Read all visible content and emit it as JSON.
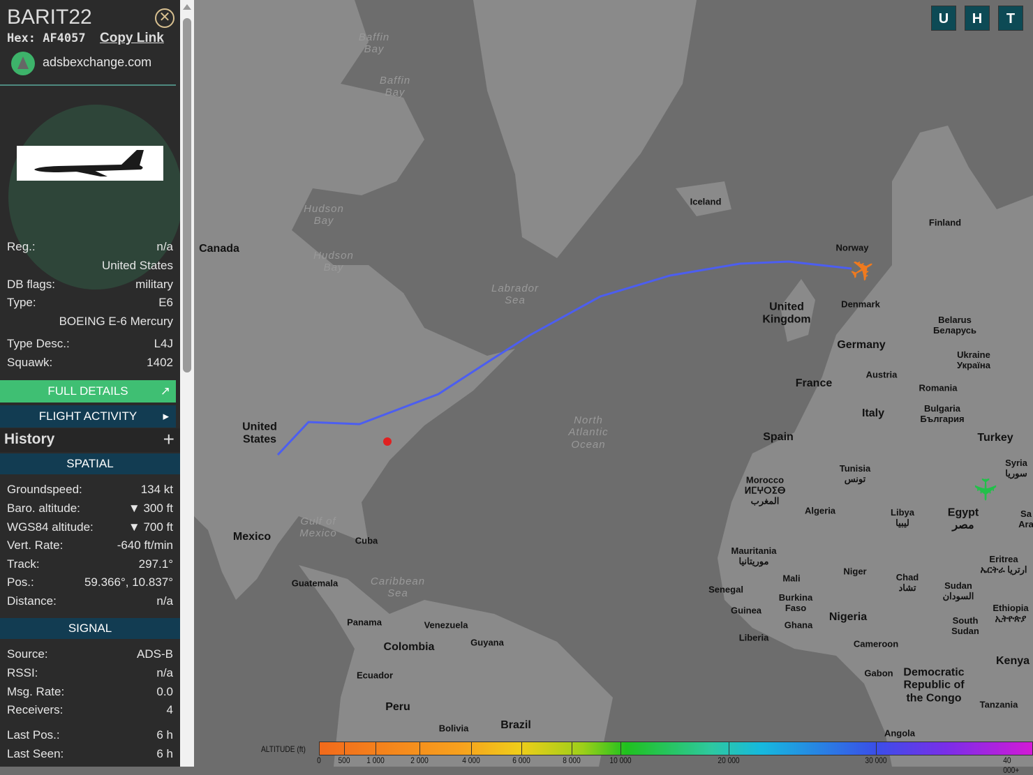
{
  "panel": {
    "callsign": "BARIT22",
    "hex_label": "Hex:",
    "hex": "AF4057",
    "copy_link": "Copy Link",
    "site": "adsbexchange.com",
    "info": [
      {
        "label": "Reg.:",
        "value": "n/a"
      },
      {
        "label": "",
        "value": "United States"
      },
      {
        "label": "DB flags:",
        "value": "military"
      },
      {
        "label": "Type:",
        "value": "E6"
      },
      {
        "label": "",
        "value": "BOEING E-6 Mercury"
      },
      {
        "label": "Type Desc.:",
        "value": "L4J"
      },
      {
        "label": "Squawk:",
        "value": "1402"
      }
    ],
    "full_details": "FULL DETAILS",
    "flight_activity": "FLIGHT ACTIVITY",
    "history": "History",
    "history_icon": "plus-icon",
    "spatial_title": "SPATIAL",
    "spatial": [
      {
        "label": "Groundspeed:",
        "value": "134 kt"
      },
      {
        "label": "Baro. altitude:",
        "value": "▼ 300 ft"
      },
      {
        "label": "WGS84 altitude:",
        "value": "▼ 700 ft"
      },
      {
        "label": "Vert. Rate:",
        "value": "-640 ft/min"
      },
      {
        "label": "Track:",
        "value": "297.1°"
      },
      {
        "label": "Pos.:",
        "value": "59.366°, 10.837°"
      },
      {
        "label": "Distance:",
        "value": "n/a"
      }
    ],
    "signal_title": "SIGNAL",
    "signal": [
      {
        "label": "Source:",
        "value": "ADS-B"
      },
      {
        "label": "RSSI:",
        "value": "n/a"
      },
      {
        "label": "Msg. Rate:",
        "value": "0.0"
      },
      {
        "label": "Receivers:",
        "value": "4"
      },
      {
        "label": "Last Pos.:",
        "value": "6 h"
      },
      {
        "label": "Last Seen:",
        "value": "6 h"
      }
    ]
  },
  "map": {
    "buttons": [
      "U",
      "H",
      "T"
    ],
    "labels": [
      "Baffin\nBay",
      "Baffin\nBay",
      "Hudson\nBay",
      "Hudson\nBay",
      "Labrador\nSea",
      "North\nAtlantic\nOcean",
      "Gulf of\nMexico",
      "Caribbean\nSea",
      "Canada",
      "United\nStates",
      "Mexico",
      "Cuba",
      "Guatemala",
      "Panama",
      "Venezuela",
      "Guyana",
      "Colombia",
      "Ecuador",
      "Peru",
      "Brazil",
      "Bolivia",
      "Iceland",
      "Norway",
      "Finland",
      "Denmark",
      "United\nKingdom",
      "Germany",
      "France",
      "Austria",
      "Italy",
      "Spain",
      "Belarus\nБеларусь",
      "Ukraine\nУкраïна",
      "Romania",
      "Bulgaria\nБългария",
      "Turkey",
      "Syria\nسوريا",
      "Tunisia\nتونس",
      "Morocco\nⵍⵎⵖⵔⵉⴱ\nالمغرب",
      "Algeria",
      "Libya\nليبيا",
      "Egypt\nمصر",
      "Mauritania\nموريتانيا",
      "Mali",
      "Niger",
      "Chad\nتشاد",
      "Sudan\nالسودان",
      "Eritrea\nኤርትራ ارتريا",
      "Ethiopia\nኢትዮጵያ",
      "Senegal",
      "Burkina\nFaso",
      "Guinea",
      "Ghana",
      "Nigeria",
      "Liberia",
      "Cameroon",
      "South\nSudan",
      "Gabon",
      "Democratic\nRepublic of\nthe Congo",
      "Kenya",
      "Tanzania",
      "Angola",
      "Sa\nAra"
    ],
    "track_color": "#4c5ef0",
    "aircraft_color": "#f07a1e",
    "other_aircraft_color": "#22c04a"
  },
  "legend": {
    "title": "ALTITUDE (ft)",
    "ticks": [
      "0",
      "500",
      "1 000",
      "2 000",
      "4 000",
      "6 000",
      "8 000",
      "10 000",
      "20 000",
      "30 000",
      "40 000+"
    ]
  }
}
